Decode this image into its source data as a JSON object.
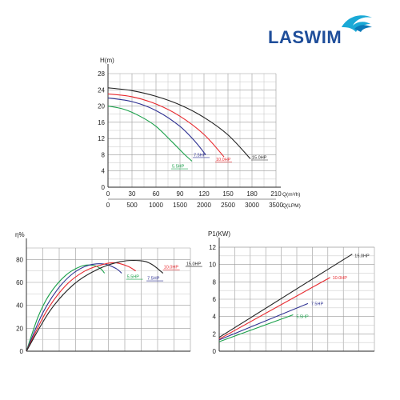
{
  "logo": {
    "text": "LASWIM",
    "icon": "wave-icon",
    "brand_color": "#1f4e9a",
    "accent_color": "#1aa9d6"
  },
  "chart_data": [
    {
      "type": "line",
      "ylabel": "H(m)",
      "xlabel": "Q(m³/h)",
      "xlabel2": "Q(LPM)",
      "xlim": [
        0,
        210
      ],
      "ylim": [
        0,
        28
      ],
      "x_ticks": [
        0,
        30,
        60,
        90,
        120,
        150,
        180,
        210
      ],
      "x2_ticks": [
        0,
        500,
        1000,
        1500,
        2000,
        2500,
        3000,
        3500
      ],
      "y_ticks": [
        0,
        4,
        8,
        12,
        16,
        20,
        24,
        28
      ],
      "grid": true,
      "series": [
        {
          "name": "5.5HP",
          "color": "#1aa04a",
          "x": [
            0,
            20,
            40,
            60,
            80,
            95,
            105
          ],
          "y": [
            20,
            19.2,
            17.5,
            15,
            11.2,
            8.2,
            6.4
          ]
        },
        {
          "name": "7.5HP",
          "color": "#2e3192",
          "x": [
            0,
            30,
            60,
            90,
            110,
            122
          ],
          "y": [
            22,
            21.1,
            18.9,
            15,
            11,
            8
          ]
        },
        {
          "name": "10.0HP",
          "color": "#e8282d",
          "x": [
            0,
            30,
            60,
            90,
            120,
            145
          ],
          "y": [
            23,
            22.3,
            20.5,
            17.5,
            13,
            7.5
          ]
        },
        {
          "name": "15.0HP",
          "color": "#222222",
          "x": [
            0,
            30,
            60,
            90,
            120,
            150,
            178
          ],
          "y": [
            24.5,
            23.8,
            22.4,
            20.3,
            17.2,
            12.9,
            7
          ]
        }
      ]
    },
    {
      "type": "line",
      "ylabel": "η%",
      "xlim": [
        0,
        210
      ],
      "ylim": [
        0,
        90
      ],
      "y_ticks": [
        0,
        20,
        40,
        60,
        80
      ],
      "x_gridlines": 10,
      "grid": true,
      "series": [
        {
          "name": "5.5HP",
          "color": "#1aa04a",
          "x": [
            0,
            15,
            30,
            50,
            70,
            85,
            95,
            100
          ],
          "y": [
            0,
            30,
            50,
            66,
            74,
            75,
            72,
            68
          ]
        },
        {
          "name": "7.5HP",
          "color": "#2e3192",
          "x": [
            0,
            20,
            40,
            60,
            80,
            100,
            115,
            122
          ],
          "y": [
            0,
            32,
            54,
            68,
            75,
            76,
            72,
            68
          ]
        },
        {
          "name": "10.0HP",
          "color": "#e8282d",
          "x": [
            0,
            25,
            50,
            75,
            100,
            115,
            130,
            140
          ],
          "y": [
            0,
            34,
            57,
            70,
            76,
            77,
            74,
            70
          ]
        },
        {
          "name": "15.0HP",
          "color": "#222222",
          "x": [
            0,
            30,
            60,
            90,
            120,
            145,
            160,
            175
          ],
          "y": [
            0,
            35,
            58,
            71,
            78,
            79,
            76,
            68
          ]
        }
      ]
    },
    {
      "type": "line",
      "ylabel": "P1(KW)",
      "xlim": [
        0,
        210
      ],
      "ylim": [
        0,
        12
      ],
      "y_ticks": [
        0,
        2,
        4,
        6,
        8,
        10,
        12
      ],
      "x_gridlines": 10,
      "grid": true,
      "series": [
        {
          "name": "5.5HP",
          "color": "#1aa04a",
          "x": [
            0,
            100
          ],
          "y": [
            1.1,
            4.2
          ]
        },
        {
          "name": "7.5HP",
          "color": "#2e3192",
          "x": [
            0,
            120
          ],
          "y": [
            1.3,
            5.5
          ]
        },
        {
          "name": "10.0HP",
          "color": "#e8282d",
          "x": [
            0,
            150
          ],
          "y": [
            1.4,
            8.5
          ]
        },
        {
          "name": "15.0HP",
          "color": "#222222",
          "x": [
            0,
            180
          ],
          "y": [
            1.6,
            11.2
          ]
        }
      ]
    }
  ]
}
